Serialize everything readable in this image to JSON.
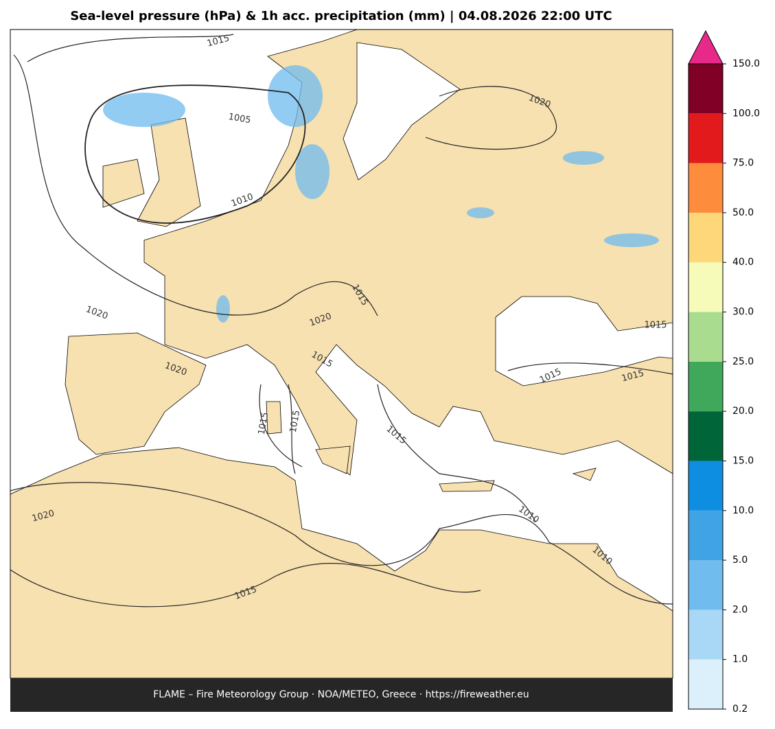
{
  "header": {
    "title": "Sea-level pressure (hPa) & 1h acc. precipitation (mm)  |  04.08.2026 22:00 UTC"
  },
  "map": {
    "contour_labels": [
      1015,
      1005,
      1010,
      1020,
      1020,
      1015,
      1020,
      1015,
      1020,
      1015,
      1015,
      1015,
      1015,
      1015,
      1015,
      1010,
      1010,
      1020,
      1015
    ]
  },
  "colorbar": {
    "ticks": [
      0.2,
      {
        "value": 1,
        "label": "1.0"
      },
      {
        "value": 2,
        "label": "2.0"
      },
      {
        "value": 5,
        "label": "5.0"
      },
      {
        "value": 10,
        "label": "10.0"
      },
      {
        "value": 15,
        "label": "15.0"
      },
      {
        "value": 20,
        "label": "20.0"
      },
      {
        "value": 25,
        "label": "25.0"
      },
      {
        "value": 30,
        "label": "30.0"
      },
      {
        "value": 40,
        "label": "40.0"
      },
      {
        "value": 50,
        "label": "50.0"
      },
      {
        "value": 75,
        "label": "75.0"
      },
      {
        "value": 100,
        "label": "100.0"
      },
      {
        "value": 150,
        "label": "150.0"
      }
    ],
    "colors": [
      "#dcf0fc",
      "#a8d8f6",
      "#70bcef",
      "#3fa3e6",
      "#0e8ee0",
      "#00663a",
      "#3fa85a",
      "#a9dc8e",
      "#f7fbb9",
      "#fdd77a",
      "#fd8d3c",
      "#e31a1c",
      "#800026"
    ],
    "extend_color": "#e7298a"
  },
  "footer": {
    "text": "FLAME – Fire Meteorology Group · NOA/METEO, Greece · https://fireweather.eu"
  }
}
